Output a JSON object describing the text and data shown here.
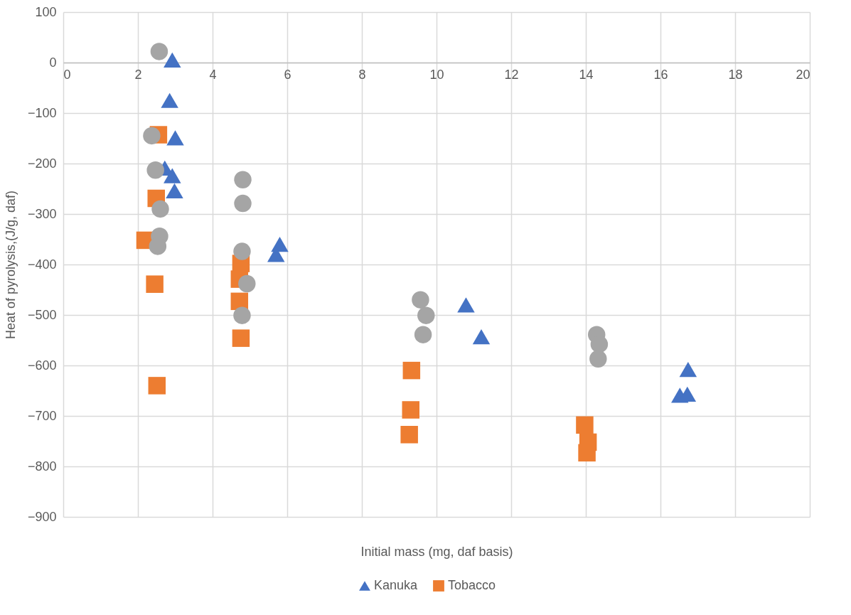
{
  "chart_data": {
    "type": "scatter",
    "xlabel": "Initial mass (mg, daf basis)",
    "ylabel": "Heat of pyrolysis,(J/g, daf)",
    "xlim": [
      0,
      20
    ],
    "xticks": [
      0,
      2,
      4,
      6,
      8,
      10,
      12,
      14,
      16,
      18,
      20
    ],
    "ylim": [
      -900,
      100
    ],
    "yticks": [
      -900,
      -800,
      -700,
      -600,
      -500,
      -400,
      -300,
      -200,
      -100,
      0,
      100
    ],
    "grid": true,
    "legend": "bottom",
    "series": [
      {
        "name": "Kanuka",
        "color": "#4472c4",
        "marker": "triangle",
        "x": [
          2.92,
          2.85,
          3.0,
          2.72,
          2.92,
          2.98,
          5.8,
          5.7,
          10.79,
          11.2,
          16.74,
          16.52,
          16.72
        ],
        "values": [
          5,
          -75,
          -149,
          -209,
          -224,
          -254,
          -360,
          -380,
          -480,
          -543,
          -608,
          -659,
          -657
        ]
      },
      {
        "name": "Tobacco",
        "color": "#ed7d31",
        "marker": "square",
        "x": [
          2.55,
          2.49,
          2.19,
          2.45,
          2.51,
          4.76,
          4.72,
          4.72,
          4.76,
          9.33,
          9.31,
          9.27,
          13.97,
          14.06,
          14.03
        ],
        "values": [
          -143,
          -269,
          -352,
          -439,
          -640,
          -398,
          -429,
          -473,
          -546,
          -610,
          -688,
          -737,
          -718,
          -752,
          -773
        ]
      },
      {
        "color": "#a5a5a5",
        "marker": "circle",
        "x": [
          2.57,
          2.37,
          2.47,
          2.6,
          4.81,
          4.81,
          2.58,
          2.53,
          4.79,
          4.92,
          4.79,
          9.57,
          9.72,
          9.64,
          14.29,
          14.36,
          14.33
        ],
        "values": [
          22,
          -145,
          -213,
          -290,
          -232,
          -279,
          -344,
          -364,
          -374,
          -438,
          -501,
          -470,
          -501,
          -539,
          -539,
          -558,
          -587
        ]
      }
    ]
  }
}
